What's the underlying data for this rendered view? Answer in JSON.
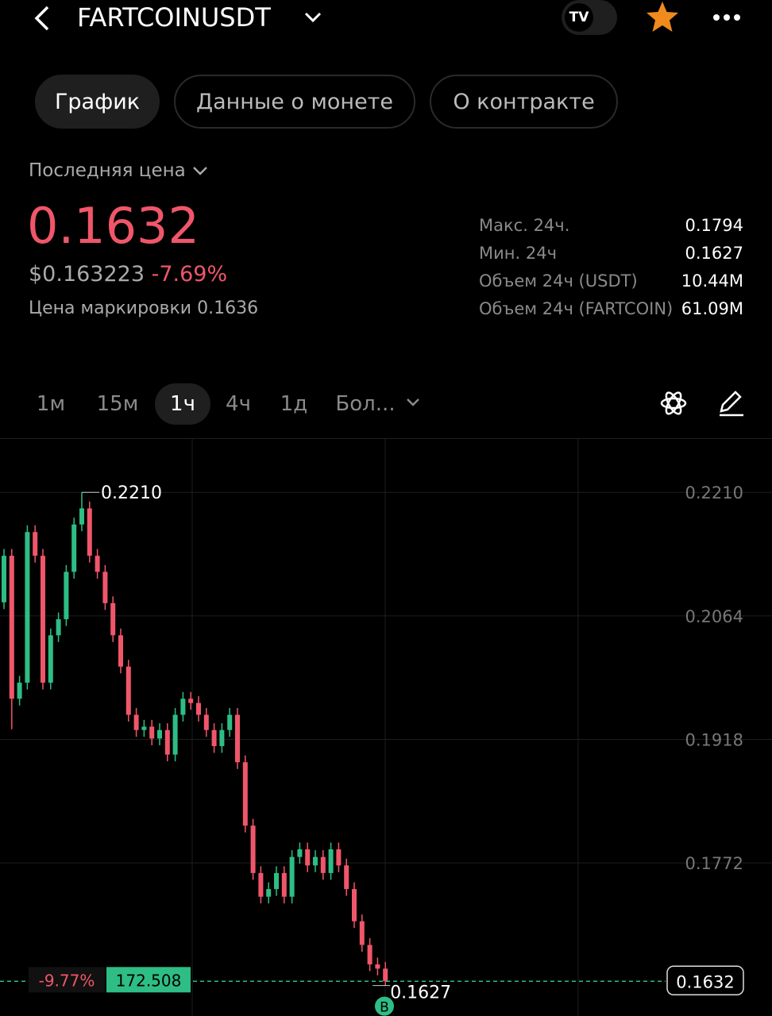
{
  "header": {
    "symbol": "FARTCOINUSDT"
  },
  "tabs": [
    "График",
    "Данные о монете",
    "О контракте"
  ],
  "price": {
    "label": "Последняя цена",
    "last": "0.1632",
    "usd": "$0.163223",
    "change": "-7.69%",
    "mark_label": "Цена маркировки",
    "mark": "0.1636"
  },
  "stats": [
    [
      "Макс. 24ч.",
      "0.1794"
    ],
    [
      "Мин. 24ч",
      "0.1627"
    ],
    [
      "Объем 24ч (USDT)",
      "10.44M"
    ],
    [
      "Объем 24ч (FARTCOIN)",
      "61.09M"
    ]
  ],
  "intervals": [
    "1м",
    "15м",
    "1ч",
    "4ч",
    "1д",
    "Бол..."
  ],
  "overlay": {
    "change": "-9.77%",
    "value": "172.508",
    "marker": "B"
  },
  "chart_data": {
    "type": "candlestick",
    "ylim": [
      0.1591,
      0.2274
    ],
    "yticks": [
      {
        "value": 0.221,
        "label": "0.2210"
      },
      {
        "value": 0.2064,
        "label": "0.2064"
      },
      {
        "value": 0.1918,
        "label": "0.1918"
      },
      {
        "value": 0.1772,
        "label": "0.1772"
      }
    ],
    "up_color": "#2ebd85",
    "down_color": "#f0566a",
    "grid": true,
    "max_marker": {
      "value": 0.221,
      "label": "0.2210"
    },
    "min_marker": {
      "value": 0.1627,
      "label": "0.1627"
    },
    "last_price": {
      "value": 0.1632,
      "label": "0.1632"
    },
    "open": [
      0.208,
      0.2135,
      0.1966,
      0.1985,
      0.2163,
      0.2135,
      0.1985,
      0.2041,
      0.206,
      0.2116,
      0.2172,
      0.2191,
      0.2135,
      0.2116,
      0.2079,
      0.2041,
      0.2004,
      0.1947,
      0.1929,
      0.1933,
      0.1919,
      0.1929,
      0.19,
      0.1947,
      0.1966,
      0.1961,
      0.1947,
      0.1929,
      0.191,
      0.1929,
      0.1947,
      0.1891,
      0.1816,
      0.176,
      0.1732,
      0.1741,
      0.176,
      0.1732,
      0.1779,
      0.1788,
      0.1769,
      0.1779,
      0.176,
      0.1788,
      0.1769,
      0.1741,
      0.1703,
      0.1675,
      0.1652,
      0.1647
    ],
    "high": [
      0.2143,
      0.2143,
      0.1993,
      0.2171,
      0.2171,
      0.2143,
      0.2049,
      0.2068,
      0.2124,
      0.218,
      0.221,
      0.2199,
      0.2143,
      0.2124,
      0.2087,
      0.2049,
      0.2012,
      0.1955,
      0.1941,
      0.1941,
      0.1937,
      0.1937,
      0.1955,
      0.1974,
      0.1974,
      0.1969,
      0.1955,
      0.1937,
      0.1937,
      0.1955,
      0.1955,
      0.1899,
      0.1824,
      0.1768,
      0.1749,
      0.1768,
      0.1768,
      0.1787,
      0.1796,
      0.1796,
      0.1787,
      0.1787,
      0.1796,
      0.1796,
      0.1777,
      0.1749,
      0.1711,
      0.1683,
      0.166,
      0.1655
    ],
    "low": [
      0.2072,
      0.193,
      0.1958,
      0.1977,
      0.2127,
      0.1977,
      0.1977,
      0.2033,
      0.2052,
      0.2108,
      0.2164,
      0.2127,
      0.2108,
      0.2071,
      0.2033,
      0.1996,
      0.1939,
      0.1921,
      0.1921,
      0.1911,
      0.1911,
      0.1892,
      0.1892,
      0.1939,
      0.1953,
      0.1939,
      0.1921,
      0.1902,
      0.1902,
      0.1921,
      0.1883,
      0.1808,
      0.1752,
      0.1724,
      0.1724,
      0.1733,
      0.1724,
      0.1724,
      0.1771,
      0.1761,
      0.1761,
      0.1752,
      0.1752,
      0.1761,
      0.1733,
      0.1695,
      0.1667,
      0.1644,
      0.1639,
      0.1627
    ],
    "close": [
      0.2135,
      0.1966,
      0.1985,
      0.2163,
      0.2135,
      0.1985,
      0.2041,
      0.206,
      0.2116,
      0.2172,
      0.2191,
      0.2135,
      0.2116,
      0.2079,
      0.2041,
      0.2004,
      0.1947,
      0.1929,
      0.1933,
      0.1919,
      0.1929,
      0.19,
      0.1947,
      0.1966,
      0.1961,
      0.1947,
      0.1929,
      0.191,
      0.1929,
      0.1947,
      0.1891,
      0.1816,
      0.176,
      0.1732,
      0.1741,
      0.176,
      0.1732,
      0.1779,
      0.1788,
      0.1769,
      0.1779,
      0.176,
      0.1788,
      0.1769,
      0.1741,
      0.1703,
      0.1675,
      0.1652,
      0.1647,
      0.1632
    ]
  }
}
